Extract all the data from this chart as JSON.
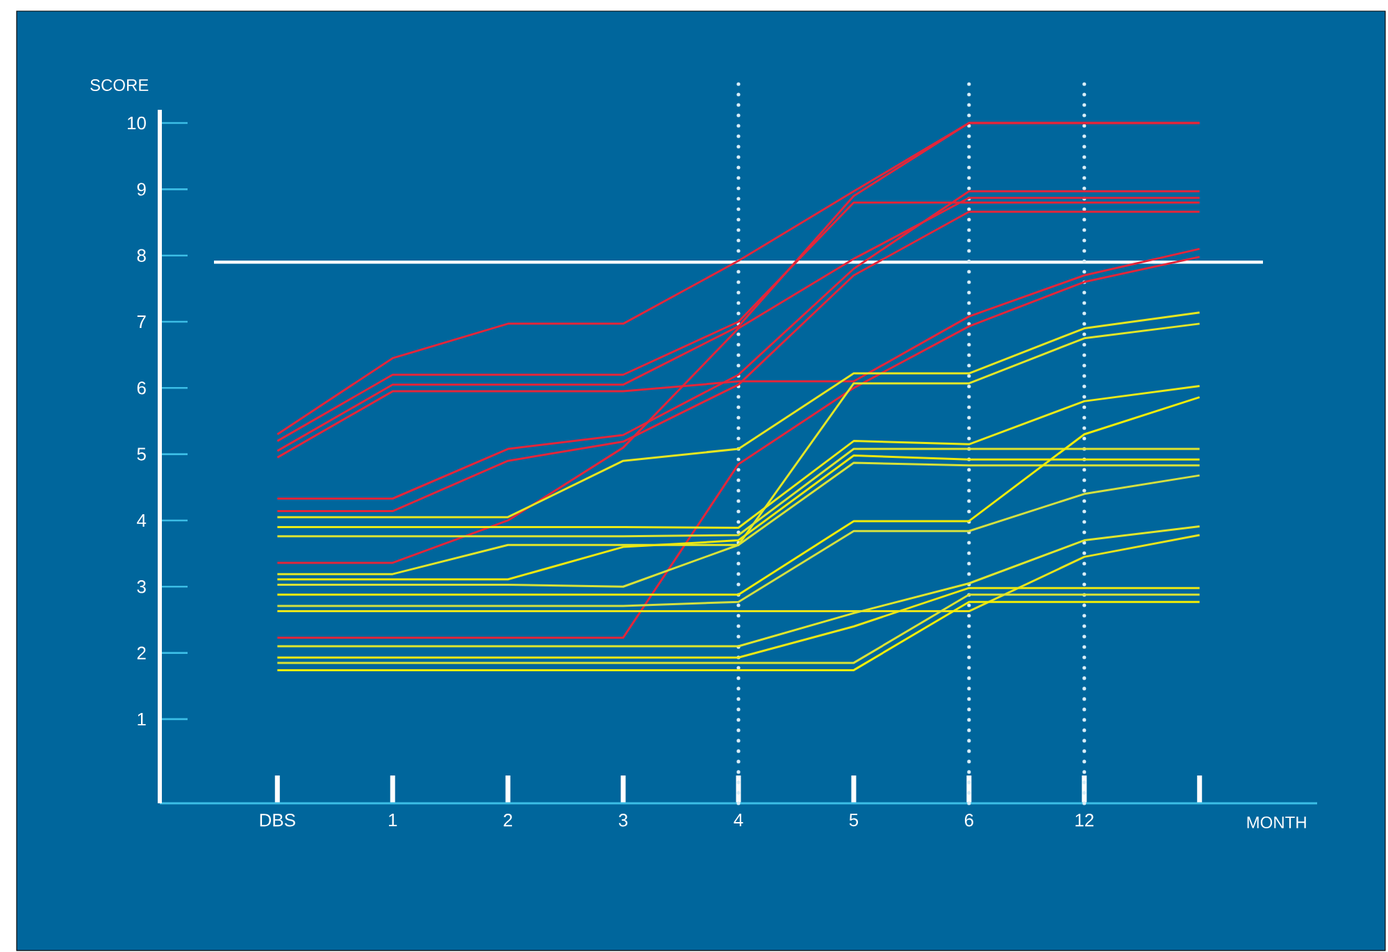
{
  "chart_data": {
    "type": "line",
    "xlabel": "MONTH",
    "ylabel": "SCORE",
    "categories": [
      "DBS",
      "1",
      "2",
      "3",
      "4",
      "5",
      "6",
      "12",
      null
    ],
    "ylim": [
      -0.27,
      10.2
    ],
    "yticks": [
      1,
      2,
      3,
      4,
      5,
      6,
      7,
      8,
      9,
      10
    ],
    "ref_lines": [
      {
        "axis": "y",
        "value": 7.9,
        "color": "#ffffff",
        "line_style": "solid"
      },
      {
        "axis": "x",
        "value": "4",
        "color": "#d8eef8",
        "line_style": "dotted"
      },
      {
        "axis": "x",
        "value": "6",
        "color": "#d8eef8",
        "line_style": "dotted"
      },
      {
        "axis": "x",
        "value": "12",
        "color": "#d8eef8",
        "line_style": "dotted"
      }
    ],
    "series": [
      {
        "color": "#e3263a",
        "values": [
          5.3,
          6.45,
          6.97,
          6.97,
          7.92,
          8.97,
          10,
          10,
          10
        ]
      },
      {
        "color": "#e3263a",
        "values": [
          5.2,
          6.2,
          6.2,
          6.2,
          7.0,
          8.8,
          8.8,
          8.8,
          8.8
        ]
      },
      {
        "color": "#e3263a",
        "values": [
          5.05,
          6.05,
          6.05,
          6.05,
          6.93,
          8.9,
          10,
          10,
          10
        ]
      },
      {
        "color": "#e3263a",
        "values": [
          4.95,
          5.95,
          5.95,
          5.95,
          6.1,
          6.1,
          7.08,
          7.7,
          8.1
        ]
      },
      {
        "color": "#e3263a",
        "values": [
          4.33,
          4.33,
          5.08,
          5.29,
          6.2,
          7.8,
          8.97,
          8.97,
          8.97
        ]
      },
      {
        "color": "#e3263a",
        "values": [
          4.14,
          4.14,
          4.9,
          5.19,
          6.05,
          7.7,
          8.66,
          8.66,
          8.66
        ]
      },
      {
        "color": "#e3263a",
        "values": [
          3.36,
          3.36,
          4.0,
          5.1,
          6.9,
          7.95,
          8.87,
          8.87,
          8.87
        ]
      },
      {
        "color": "#e3263a",
        "values": [
          2.23,
          2.23,
          2.23,
          2.23,
          4.85,
          6.0,
          6.93,
          7.6,
          7.98
        ]
      },
      {
        "color": "#e6e620",
        "values": [
          4.05,
          4.05,
          4.05,
          4.9,
          5.08,
          6.22,
          6.22,
          6.9,
          7.14
        ]
      },
      {
        "color": "#e2e628",
        "values": [
          3.19,
          3.19,
          3.63,
          3.63,
          3.63,
          6.07,
          6.07,
          6.75,
          6.97
        ]
      },
      {
        "color": "#eaea18",
        "values": [
          3.9,
          3.9,
          3.9,
          3.9,
          3.89,
          5.2,
          5.15,
          5.8,
          6.03
        ]
      },
      {
        "color": "#dee430",
        "values": [
          3.76,
          3.76,
          3.76,
          3.76,
          3.78,
          5.08,
          5.08,
          5.08,
          5.08
        ]
      },
      {
        "color": "#eee810",
        "values": [
          3.11,
          3.11,
          3.11,
          3.6,
          3.7,
          4.98,
          4.92,
          4.92,
          4.92
        ]
      },
      {
        "color": "#d8e238",
        "values": [
          3.03,
          3.03,
          3.03,
          3.0,
          3.63,
          4.87,
          4.83,
          4.83,
          4.83
        ]
      },
      {
        "color": "#f0ec08",
        "values": [
          2.88,
          2.88,
          2.88,
          2.88,
          2.88,
          3.99,
          3.99,
          5.3,
          5.86
        ]
      },
      {
        "color": "#d4e040",
        "values": [
          2.71,
          2.71,
          2.71,
          2.71,
          2.77,
          3.84,
          3.84,
          4.4,
          4.68
        ]
      },
      {
        "color": "#e8e41c",
        "values": [
          2.63,
          2.63,
          2.63,
          2.63,
          2.63,
          2.63,
          2.63,
          3.45,
          3.78
        ]
      },
      {
        "color": "#e0e62c",
        "values": [
          2.1,
          2.1,
          2.1,
          2.1,
          2.1,
          2.6,
          3.05,
          3.7,
          3.91
        ]
      },
      {
        "color": "#ece814",
        "values": [
          1.93,
          1.93,
          1.93,
          1.93,
          1.93,
          2.4,
          2.98,
          2.98,
          2.98
        ]
      },
      {
        "color": "#dae234",
        "values": [
          1.85,
          1.85,
          1.85,
          1.85,
          1.85,
          1.85,
          2.88,
          2.88,
          2.88
        ]
      },
      {
        "color": "#f2ee04",
        "values": [
          1.74,
          1.74,
          1.74,
          1.74,
          1.74,
          1.74,
          2.77,
          2.77,
          2.77
        ]
      }
    ]
  }
}
